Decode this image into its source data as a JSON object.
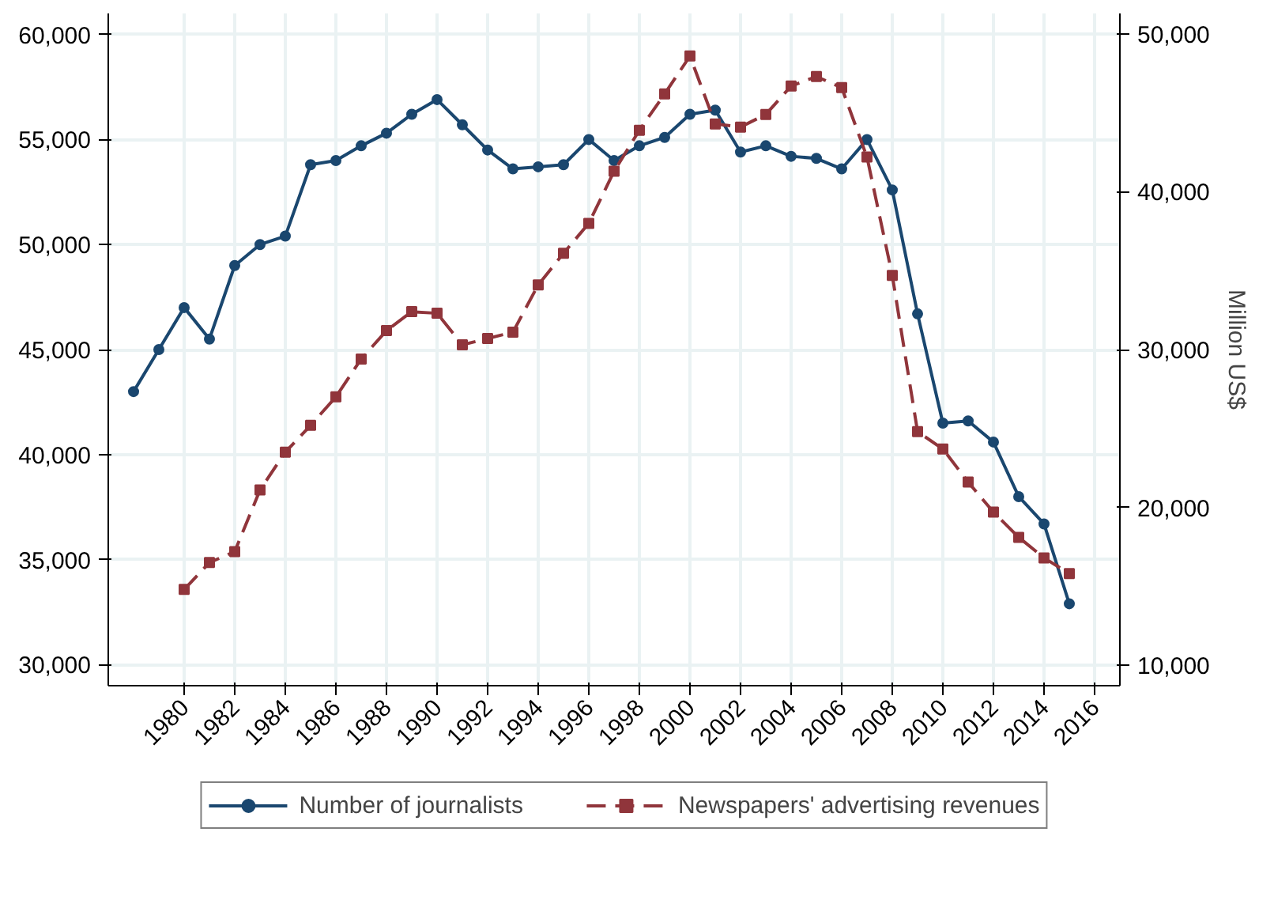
{
  "chart_data": {
    "type": "line",
    "y2label": "Million US$",
    "x": [
      1978,
      1979,
      1980,
      1981,
      1982,
      1983,
      1984,
      1985,
      1986,
      1987,
      1988,
      1989,
      1990,
      1991,
      1992,
      1993,
      1994,
      1995,
      1996,
      1997,
      1998,
      1999,
      2000,
      2001,
      2002,
      2003,
      2004,
      2005,
      2006,
      2007,
      2008,
      2009,
      2010,
      2011,
      2012,
      2013,
      2014,
      2015
    ],
    "series": [
      {
        "name": "Number of journalists",
        "color": "#1a476f",
        "marker": "circle",
        "line_style": "solid",
        "values": [
          43000,
          45000,
          47000,
          45500,
          49000,
          50000,
          50400,
          53800,
          54000,
          54700,
          55300,
          56200,
          56900,
          55700,
          54500,
          53600,
          53700,
          53800,
          55000,
          54000,
          54700,
          55100,
          56200,
          56400,
          54400,
          54700,
          54200,
          54100,
          53600,
          55000,
          52600,
          46700,
          41500,
          41600,
          40600,
          38000,
          36700,
          32900
        ]
      },
      {
        "name": "Newspapers' advertising revenues",
        "color": "#90353b",
        "marker": "square",
        "line_style": "dashed",
        "axis": "y2",
        "values": [
          null,
          null,
          14800,
          16500,
          17200,
          21100,
          23500,
          25200,
          27000,
          29400,
          31200,
          32400,
          32300,
          30300,
          30700,
          31100,
          34100,
          36100,
          38000,
          41300,
          43900,
          46200,
          48600,
          44300,
          44100,
          44900,
          46700,
          47300,
          46600,
          42200,
          34700,
          24800,
          23700,
          21600,
          19700,
          18100,
          16800,
          15800
        ]
      }
    ],
    "xlim": [
      1977,
      2017
    ],
    "xticks": [
      1980,
      1982,
      1984,
      1986,
      1988,
      1990,
      1992,
      1994,
      1996,
      1998,
      2000,
      2002,
      2004,
      2006,
      2008,
      2010,
      2012,
      2014,
      2016
    ],
    "ylim": [
      29000,
      61000
    ],
    "yticks": [
      {
        "value": 30000,
        "label": "30,000"
      },
      {
        "value": 35000,
        "label": "35,000"
      },
      {
        "value": 40000,
        "label": "40,000"
      },
      {
        "value": 45000,
        "label": "45,000"
      },
      {
        "value": 50000,
        "label": "50,000"
      },
      {
        "value": 55000,
        "label": "55,000"
      },
      {
        "value": 60000,
        "label": "60,000"
      }
    ],
    "y2lim": [
      8700,
      51300
    ],
    "y2ticks": [
      {
        "value": 10000,
        "label": "10,000"
      },
      {
        "value": 20000,
        "label": "20,000"
      },
      {
        "value": 30000,
        "label": "30,000"
      },
      {
        "value": 40000,
        "label": "40,000"
      },
      {
        "value": 50000,
        "label": "50,000"
      }
    ],
    "grid": true,
    "legend": "bottom"
  }
}
